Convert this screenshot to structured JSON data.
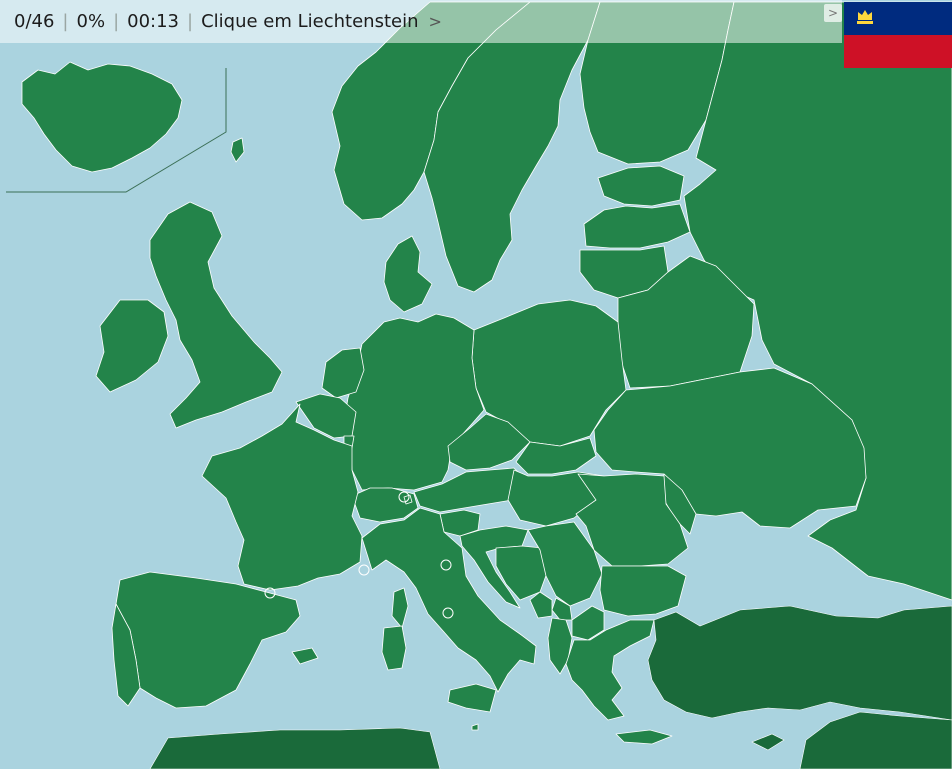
{
  "hud": {
    "score": "0/46",
    "percent": "0%",
    "timer": "00:13",
    "prompt": "Clique em Liechtenstein",
    "next_symbol": ">"
  },
  "flag": {
    "country": "Liechtenstein",
    "top_color": "#002b7f",
    "bottom_color": "#ce1126",
    "emblem_color": "#ffd83d",
    "toggle_symbol": ">"
  },
  "map": {
    "sea_color": "#aad3df",
    "land_color": "#23844a",
    "outside_land_color": "#1a6a3a",
    "border_color": "#ffffff"
  }
}
